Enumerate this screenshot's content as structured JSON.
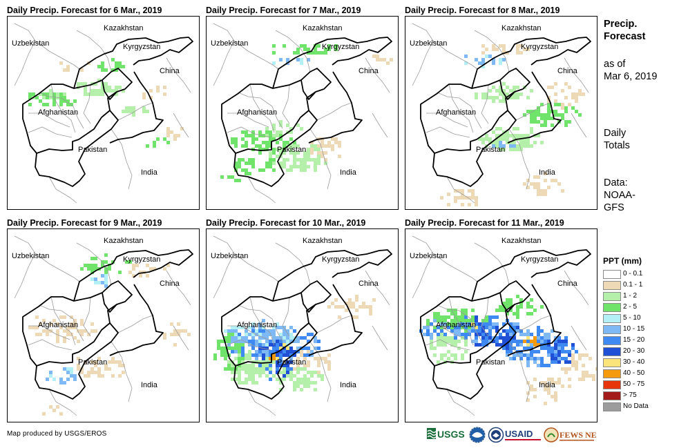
{
  "panels": [
    {
      "title": "Daily Precip. Forecast for 6 Mar., 2019",
      "day": 0
    },
    {
      "title": "Daily Precip. Forecast for 7 Mar., 2019",
      "day": 1
    },
    {
      "title": "Daily Precip. Forecast for 8 Mar., 2019",
      "day": 2
    },
    {
      "title": "Daily Precip. Forecast for 9 Mar., 2019",
      "day": 3
    },
    {
      "title": "Daily Precip. Forecast for 10 Mar., 2019",
      "day": 4
    },
    {
      "title": "Daily Precip. Forecast for 11 Mar., 2019",
      "day": 5
    }
  ],
  "countries": {
    "kazakhstan": "Kazakhstan",
    "uzbekistan": "Uzbekistan",
    "kyrgyzstan": "Kyrgyzstan",
    "china": "China",
    "afghanistan": "Afghanistan",
    "pakistan": "Pakistan",
    "india": "India"
  },
  "side": {
    "heading_line1": "Precip.",
    "heading_line2": "Forecast",
    "asof_line1": "as of",
    "asof_line2": "Mar 6, 2019",
    "daily_line1": "Daily",
    "daily_line2": "Totals",
    "data_line1": "Data:",
    "data_line2": "NOAA-",
    "data_line3": "GFS"
  },
  "legend": {
    "title": "PPT (mm)",
    "items": [
      {
        "label": "0 - 0.1",
        "color": "#ffffff"
      },
      {
        "label": "0.1 - 1",
        "color": "#eed9b6"
      },
      {
        "label": "1 - 2",
        "color": "#b4f0a9"
      },
      {
        "label": "2 - 5",
        "color": "#6fe36a"
      },
      {
        "label": "5 - 10",
        "color": "#b3f0f5"
      },
      {
        "label": "10 - 15",
        "color": "#7fb9f5"
      },
      {
        "label": "15 - 20",
        "color": "#3e8af2"
      },
      {
        "label": "20 - 30",
        "color": "#1f50d6"
      },
      {
        "label": "30 - 40",
        "color": "#fbe57a"
      },
      {
        "label": "40 - 50",
        "color": "#f59a0c"
      },
      {
        "label": "50 - 75",
        "color": "#e8340c"
      },
      {
        "label": "> 75",
        "color": "#a31b1b"
      },
      {
        "label": "No Data",
        "color": "#9c9c9c"
      }
    ]
  },
  "credit": "Map produced by USGS/EROS",
  "logos": {
    "usgs": "USGS",
    "usaid": "USAID",
    "fewsnet": "FEWS NET"
  }
}
